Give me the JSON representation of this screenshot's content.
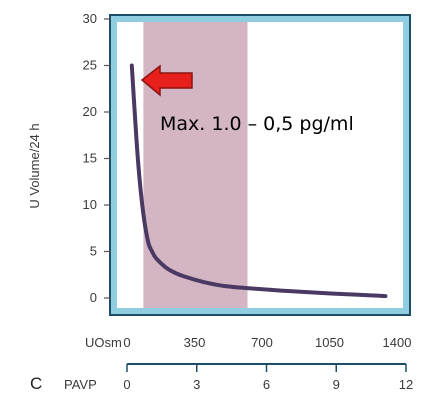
{
  "chart_data": {
    "type": "line",
    "panel_label": "C",
    "ylabel": "U Volume/24 h",
    "ylim": [
      0,
      30
    ],
    "y_ticks": [
      "0",
      "5",
      "10",
      "15",
      "20",
      "25",
      "30"
    ],
    "x_axis_primary": {
      "label": "UOsm",
      "ticks": [
        "0",
        "350",
        "700",
        "1050",
        "1400"
      ],
      "range": [
        0,
        1400
      ]
    },
    "x_axis_secondary": {
      "label": "PAVP",
      "ticks": [
        "0",
        "3",
        "6",
        "9",
        "12"
      ],
      "range": [
        0,
        12
      ]
    },
    "shaded_band": {
      "x_range": [
        85,
        625
      ],
      "color": "#d4b5c4"
    },
    "series": [
      {
        "color": "#4a3a63",
        "x": [
          25,
          40,
          60,
          85,
          110,
          130,
          150,
          200,
          250,
          300,
          400,
          500,
          600,
          800,
          1000,
          1200,
          1340
        ],
        "y": [
          25,
          20,
          14,
          9,
          6,
          5,
          4.3,
          3.3,
          2.7,
          2.3,
          1.7,
          1.3,
          1.1,
          0.8,
          0.55,
          0.35,
          0.2
        ]
      }
    ],
    "annotation": {
      "text": "Max. 1.0 – 0,5 pg/ml",
      "arrow_color": "#e8201b",
      "arrow_direction": "left"
    },
    "frame_colors": {
      "outer_border": "#1c4e68",
      "inner_border": "#90cde0",
      "axis_line": "#1c4e68"
    }
  }
}
